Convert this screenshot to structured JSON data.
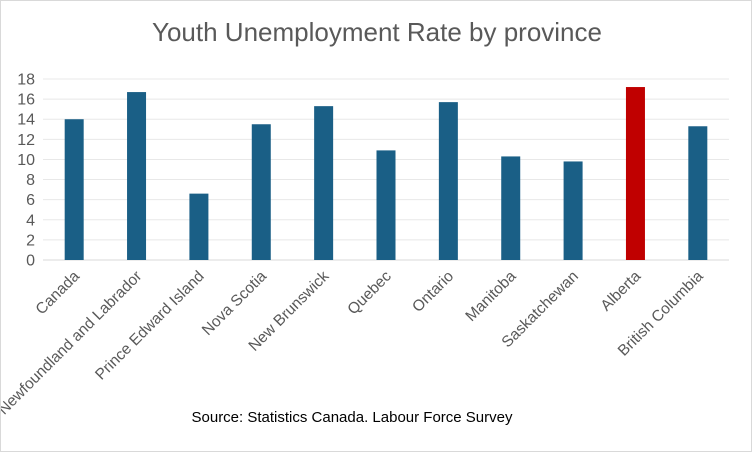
{
  "chart_data": {
    "type": "bar",
    "title": "Youth Unemployment Rate by province",
    "source": "Source: Statistics Canada. Labour Force Survey",
    "categories": [
      "Canada",
      "Newfoundland and Labrador",
      "Prince Edward Island",
      "Nova Scotia",
      "New Brunswick",
      "Quebec",
      "Ontario",
      "Manitoba",
      "Saskatchewan",
      "Alberta",
      "British Columbia"
    ],
    "values": [
      14.0,
      16.7,
      6.6,
      13.5,
      15.3,
      10.9,
      15.7,
      10.3,
      9.8,
      17.2,
      13.3
    ],
    "ylim": [
      0,
      18
    ],
    "yticks": [
      0,
      2,
      4,
      6,
      8,
      10,
      12,
      14,
      16,
      18
    ],
    "grid": true,
    "bar_color": "#1a5f86",
    "highlight_color": "#c00000",
    "highlight_category": "Alberta",
    "grid_color": "#e8e8e8",
    "axis_color": "#d9d9d9"
  }
}
